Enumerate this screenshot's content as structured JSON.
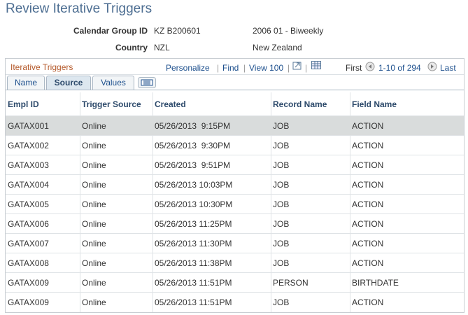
{
  "header": {
    "title": "Review Iterative Triggers"
  },
  "fields": [
    {
      "label": "Calendar Group ID",
      "value": "KZ B200601",
      "description": "2006 01 - Biweekly"
    },
    {
      "label": "Country",
      "value": "NZL",
      "description": "New Zealand"
    }
  ],
  "grid": {
    "title": "Iterative Triggers",
    "links": [
      "Personalize",
      "Find",
      "View 100"
    ],
    "first": "First",
    "range": "1-10 of 294",
    "last": "Last",
    "tabs": [
      "Name",
      "Source",
      "Values"
    ],
    "columns": [
      "Empl ID",
      "Trigger Source",
      "Created",
      "Record Name",
      "Field Name"
    ],
    "rows": [
      [
        "GATAX001",
        "Online",
        "05/26/2013  9:15PM",
        "JOB",
        "ACTION"
      ],
      [
        "GATAX002",
        "Online",
        "05/26/2013  9:30PM",
        "JOB",
        "ACTION"
      ],
      [
        "GATAX003",
        "Online",
        "05/26/2013  9:51PM",
        "JOB",
        "ACTION"
      ],
      [
        "GATAX004",
        "Online",
        "05/26/2013 10:03PM",
        "JOB",
        "ACTION"
      ],
      [
        "GATAX005",
        "Online",
        "05/26/2013 10:30PM",
        "JOB",
        "ACTION"
      ],
      [
        "GATAX006",
        "Online",
        "05/26/2013 11:25PM",
        "JOB",
        "ACTION"
      ],
      [
        "GATAX007",
        "Online",
        "05/26/2013 11:30PM",
        "JOB",
        "ACTION"
      ],
      [
        "GATAX008",
        "Online",
        "05/26/2013 11:38PM",
        "JOB",
        "ACTION"
      ],
      [
        "GATAX009",
        "Online",
        "05/26/2013 11:51PM",
        "PERSON",
        "BIRTHDATE"
      ],
      [
        "GATAX009",
        "Online",
        "05/26/2013 11:51PM",
        "JOB",
        "ACTION"
      ]
    ]
  }
}
